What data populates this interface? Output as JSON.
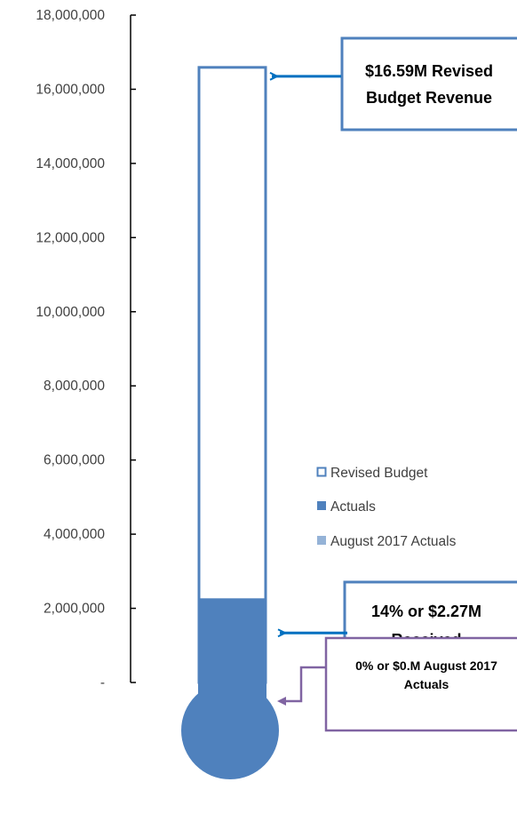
{
  "chart_data": {
    "type": "bar",
    "subtype": "thermometer",
    "ylim": [
      0,
      18000000
    ],
    "y_ticks": [
      {
        "value": 0,
        "label": "-"
      },
      {
        "value": 2000000,
        "label": "2,000,000"
      },
      {
        "value": 4000000,
        "label": "4,000,000"
      },
      {
        "value": 6000000,
        "label": "6,000,000"
      },
      {
        "value": 8000000,
        "label": "8,000,000"
      },
      {
        "value": 10000000,
        "label": "10,000,000"
      },
      {
        "value": 12000000,
        "label": "12,000,000"
      },
      {
        "value": 14000000,
        "label": "14,000,000"
      },
      {
        "value": 16000000,
        "label": "16,000,000"
      },
      {
        "value": 18000000,
        "label": "18,000,000"
      }
    ],
    "series": [
      {
        "name": "Revised Budget",
        "value": 16590000,
        "style": "outline",
        "color": "#4f81bd"
      },
      {
        "name": "Actuals",
        "value": 2270000,
        "style": "filled",
        "color": "#4f81bd"
      },
      {
        "name": "August 2017 Actuals",
        "value": 0,
        "style": "filled",
        "color": "#95b3d7"
      }
    ],
    "legend_position": "right",
    "grid": false,
    "annotations": [
      {
        "id": "budget",
        "line1": "$16.59M Revised",
        "line2": "Budget Revenue",
        "points_to": 16590000,
        "color": "#4f81bd",
        "arrow_color": "#0070c0"
      },
      {
        "id": "actuals",
        "line1": "14% or $2.27M",
        "line2": "Received",
        "points_to": 2270000,
        "color": "#4f81bd",
        "arrow_color": "#0070c0"
      },
      {
        "id": "august",
        "line1": "0% or $0.M August 2017",
        "line2": "Actuals",
        "points_to": 0,
        "color": "#8064a2",
        "arrow_color": "#8064a2"
      }
    ]
  }
}
